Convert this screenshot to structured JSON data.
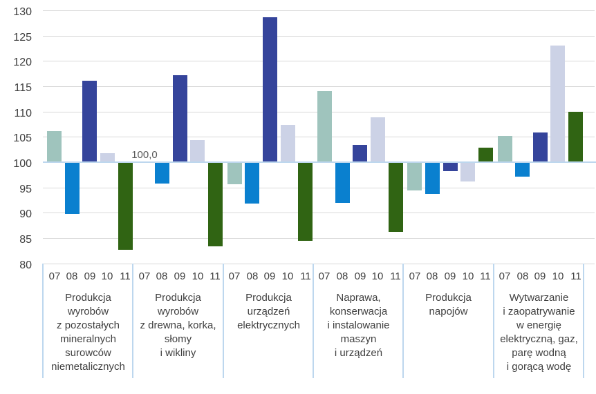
{
  "chart_data": {
    "type": "bar",
    "title": "",
    "xlabel": "",
    "ylabel": "",
    "ylim": [
      80,
      130
    ],
    "ytick_step": 5,
    "yticks": [
      "130",
      "125",
      "120",
      "115",
      "110",
      "105",
      "100",
      "95",
      "90",
      "85",
      "80"
    ],
    "baseline": 100,
    "grid": true,
    "legend_position": "none",
    "periods": [
      "07",
      "08",
      "09",
      "10",
      "11"
    ],
    "period_colors": [
      "#9fc4bd",
      "#0a80cf",
      "#35449b",
      "#ccd2e6",
      "#306413"
    ],
    "annotation": {
      "text": "100,0",
      "category_index": 1,
      "period_index": 0
    },
    "groups": [
      {
        "label": "Produkcja wyrobów z pozostałych mineralnych surowców niemetalicznych",
        "label_lines": [
          "Produkcja",
          "wyrobów",
          "z pozostałych",
          "mineralnych",
          "surowców",
          "niemetalicznych"
        ],
        "values": [
          106.2,
          89.8,
          116.1,
          101.8,
          82.7
        ]
      },
      {
        "label": "Produkcja wyrobów z drewna, korka, słomy i wikliny",
        "label_lines": [
          "Produkcja",
          "wyrobów",
          "z drewna, korka,",
          "słomy",
          "i wikliny"
        ],
        "values": [
          100.0,
          95.8,
          117.2,
          104.4,
          83.3
        ]
      },
      {
        "label": "Produkcja urządzeń elektrycznych",
        "label_lines": [
          "Produkcja",
          "urządzeń",
          "elektrycznych"
        ],
        "values": [
          95.6,
          91.8,
          128.6,
          107.3,
          84.4
        ]
      },
      {
        "label": "Naprawa, konserwacja i instalowanie maszyn i urządzeń",
        "label_lines": [
          "Naprawa,",
          "konserwacja",
          "i instalowanie",
          "maszyn",
          "i urządzeń"
        ],
        "values": [
          114.0,
          92.0,
          103.4,
          108.8,
          86.2
        ]
      },
      {
        "label": "Produkcja napojów",
        "label_lines": [
          "Produkcja",
          "napojów"
        ],
        "values": [
          94.4,
          93.7,
          98.2,
          96.2,
          102.8
        ]
      },
      {
        "label": "Wytwarzanie i zaopatrywanie w energię elektryczną, gaz, parę wodną i gorącą wodę",
        "label_lines": [
          "Wytwarzanie",
          "i zaopatrywanie",
          "w energię",
          "elektryczną, gaz,",
          "parę wodną",
          "i gorącą wodę"
        ],
        "values": [
          105.2,
          97.1,
          105.8,
          123.0,
          109.9
        ]
      }
    ],
    "colors": {
      "baseline_line": "#bdd7ee",
      "gridline": "#d8d8d8",
      "separator": "#bdd7ee",
      "tick_text": "#3d3d3d",
      "annotation_text": "#595959",
      "label_text": "#404040",
      "background": "#ffffff"
    }
  }
}
